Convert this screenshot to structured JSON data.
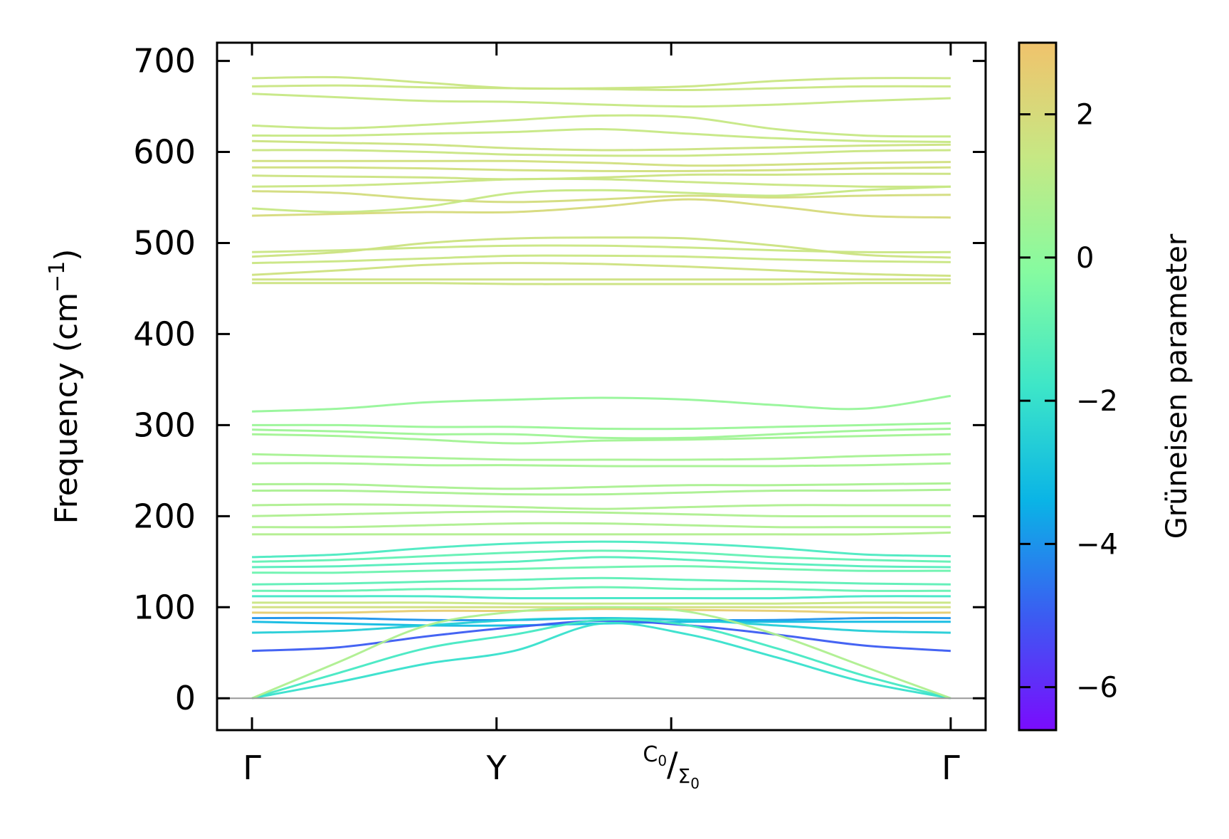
{
  "chart_data": {
    "type": "line",
    "title": "",
    "xlabel": "",
    "ylabel": "Frequency (cm",
    "ylabel_sup": "−1",
    "ylabel_close": ")",
    "ylim": [
      -35,
      720
    ],
    "yticks": [
      0,
      100,
      200,
      300,
      400,
      500,
      600,
      700
    ],
    "ytick_labels": [
      "0",
      "100",
      "200",
      "300",
      "400",
      "500",
      "600",
      "700"
    ],
    "xlim": [
      -0.05,
      1.05
    ],
    "kpoints": [
      {
        "label": "Γ",
        "pos": 0.0
      },
      {
        "label": "Y",
        "pos": 0.35
      },
      {
        "label": "C",
        "sub": "0",
        "label2": "Σ",
        "sub2": "0",
        "pos": 0.6
      },
      {
        "label": "Γ",
        "pos": 1.0
      }
    ],
    "zero_line": 0,
    "grid": false,
    "colorbar": {
      "label": "Grüneisen parameter",
      "range": [
        -6.6,
        3.0
      ],
      "ticks": [
        -6,
        -4,
        -2,
        0,
        2
      ],
      "tick_labels": [
        "−6",
        "−4",
        "−2",
        "0",
        "2"
      ],
      "colormap": "rainbow",
      "stops": [
        "#7a0cfd",
        "#3b5cf2",
        "#0ab4e6",
        "#3de6c8",
        "#86fba0",
        "#c6e884",
        "#f0c36c"
      ]
    },
    "series": [
      {
        "g": 1.5,
        "y": [
          681,
          682,
          676,
          670,
          670,
          672,
          678,
          681,
          681
        ]
      },
      {
        "g": 1.5,
        "y": [
          672,
          673,
          671,
          670,
          669,
          668,
          670,
          672,
          672
        ]
      },
      {
        "g": 1.4,
        "y": [
          664,
          660,
          656,
          655,
          652,
          650,
          652,
          656,
          659
        ]
      },
      {
        "g": 1.4,
        "y": [
          629,
          626,
          630,
          635,
          640,
          638,
          625,
          618,
          617
        ]
      },
      {
        "g": 1.4,
        "y": [
          618,
          618,
          620,
          622,
          625,
          620,
          615,
          612,
          611
        ]
      },
      {
        "g": 1.6,
        "y": [
          612,
          610,
          608,
          604,
          602,
          603,
          605,
          607,
          608
        ]
      },
      {
        "g": 1.5,
        "y": [
          602,
          602,
          600,
          597,
          596,
          596,
          598,
          601,
          602
        ]
      },
      {
        "g": 1.8,
        "y": [
          590,
          590,
          590,
          590,
          588,
          585,
          586,
          588,
          589
        ]
      },
      {
        "g": 1.8,
        "y": [
          583,
          583,
          582,
          580,
          579,
          579,
          580,
          582,
          583
        ]
      },
      {
        "g": 1.6,
        "y": [
          574,
          573,
          572,
          570,
          572,
          575,
          575,
          576,
          576
        ]
      },
      {
        "g": 1.5,
        "y": [
          562,
          563,
          566,
          570,
          570,
          567,
          564,
          562,
          562
        ]
      },
      {
        "g": 1.9,
        "y": [
          557,
          555,
          548,
          545,
          548,
          552,
          550,
          552,
          553
        ]
      },
      {
        "g": 1.4,
        "y": [
          538,
          534,
          540,
          555,
          558,
          555,
          552,
          558,
          562
        ]
      },
      {
        "g": 2.0,
        "y": [
          530,
          532,
          534,
          534,
          540,
          548,
          540,
          530,
          528
        ]
      },
      {
        "g": 1.5,
        "y": [
          490,
          492,
          495,
          497,
          497,
          495,
          492,
          490,
          490
        ]
      },
      {
        "g": 1.6,
        "y": [
          485,
          490,
          500,
          505,
          506,
          505,
          497,
          487,
          484
        ]
      },
      {
        "g": 1.5,
        "y": [
          478,
          480,
          483,
          486,
          486,
          485,
          482,
          480,
          479
        ]
      },
      {
        "g": 1.7,
        "y": [
          465,
          470,
          476,
          478,
          477,
          474,
          470,
          466,
          464
        ]
      },
      {
        "g": 1.7,
        "y": [
          460,
          460,
          460,
          460,
          460,
          460,
          460,
          460,
          460
        ]
      },
      {
        "g": 1.6,
        "y": [
          456,
          456,
          456,
          455,
          455,
          455,
          455,
          456,
          456
        ]
      },
      {
        "g": 0.2,
        "y": [
          315,
          318,
          325,
          328,
          330,
          328,
          322,
          318,
          332
        ]
      },
      {
        "g": 0.3,
        "y": [
          300,
          300,
          298,
          298,
          296,
          296,
          298,
          300,
          302
        ]
      },
      {
        "g": 0.4,
        "y": [
          295,
          293,
          290,
          290,
          286,
          286,
          290,
          294,
          296
        ]
      },
      {
        "g": 0.5,
        "y": [
          290,
          288,
          284,
          280,
          283,
          284,
          286,
          288,
          290
        ]
      },
      {
        "g": 0.6,
        "y": [
          268,
          266,
          264,
          262,
          262,
          262,
          263,
          266,
          268
        ]
      },
      {
        "g": 0.6,
        "y": [
          258,
          258,
          256,
          256,
          255,
          255,
          255,
          256,
          258
        ]
      },
      {
        "g": 0.7,
        "y": [
          235,
          235,
          232,
          230,
          232,
          234,
          234,
          235,
          236
        ]
      },
      {
        "g": 0.7,
        "y": [
          228,
          228,
          226,
          224,
          224,
          226,
          228,
          228,
          229
        ]
      },
      {
        "g": 0.8,
        "y": [
          212,
          213,
          212,
          210,
          208,
          210,
          212,
          212,
          212
        ]
      },
      {
        "g": 0.8,
        "y": [
          200,
          202,
          204,
          205,
          204,
          202,
          200,
          200,
          200
        ]
      },
      {
        "g": 0.8,
        "y": [
          188,
          188,
          190,
          192,
          192,
          190,
          188,
          188,
          188
        ]
      },
      {
        "g": 0.9,
        "y": [
          180,
          180,
          180,
          180,
          180,
          180,
          180,
          180,
          182
        ]
      },
      {
        "g": -1.5,
        "y": [
          155,
          158,
          165,
          170,
          172,
          170,
          165,
          158,
          156
        ]
      },
      {
        "g": -1.0,
        "y": [
          150,
          152,
          156,
          160,
          162,
          160,
          155,
          152,
          150
        ]
      },
      {
        "g": -1.3,
        "y": [
          144,
          145,
          148,
          150,
          155,
          152,
          148,
          145,
          144
        ]
      },
      {
        "g": -0.8,
        "y": [
          138,
          138,
          140,
          142,
          144,
          145,
          142,
          140,
          140
        ]
      },
      {
        "g": -1.1,
        "y": [
          125,
          126,
          128,
          130,
          132,
          130,
          128,
          126,
          125
        ]
      },
      {
        "g": -0.9,
        "y": [
          118,
          118,
          120,
          120,
          122,
          120,
          120,
          118,
          118
        ]
      },
      {
        "g": -1.7,
        "y": [
          112,
          112,
          112,
          110,
          110,
          110,
          110,
          112,
          112
        ]
      },
      {
        "g": 1.5,
        "y": [
          105,
          105,
          105,
          104,
          104,
          104,
          104,
          105,
          105
        ]
      },
      {
        "g": 1.8,
        "y": [
          100,
          100,
          100,
          100,
          100,
          100,
          100,
          100,
          100
        ]
      },
      {
        "g": 2.6,
        "y": [
          94,
          94,
          96,
          96,
          98,
          97,
          96,
          94,
          94
        ]
      },
      {
        "g": -4.0,
        "y": [
          88,
          88,
          86,
          86,
          88,
          86,
          86,
          88,
          88
        ]
      },
      {
        "g": -3.2,
        "y": [
          84,
          82,
          80,
          80,
          82,
          84,
          84,
          84,
          84
        ]
      },
      {
        "g": -2.6,
        "y": [
          72,
          74,
          80,
          86,
          88,
          86,
          80,
          74,
          72
        ]
      },
      {
        "g": -5.0,
        "y": [
          52,
          56,
          68,
          78,
          85,
          80,
          70,
          58,
          52
        ]
      },
      {
        "g": -1.6,
        "y": [
          0,
          28,
          55,
          70,
          86,
          80,
          55,
          25,
          0
        ]
      },
      {
        "g": -2.0,
        "y": [
          0,
          18,
          38,
          52,
          82,
          70,
          45,
          18,
          0
        ]
      },
      {
        "g": 0.8,
        "y": [
          0,
          40,
          80,
          95,
          100,
          95,
          70,
          35,
          0
        ]
      }
    ]
  }
}
